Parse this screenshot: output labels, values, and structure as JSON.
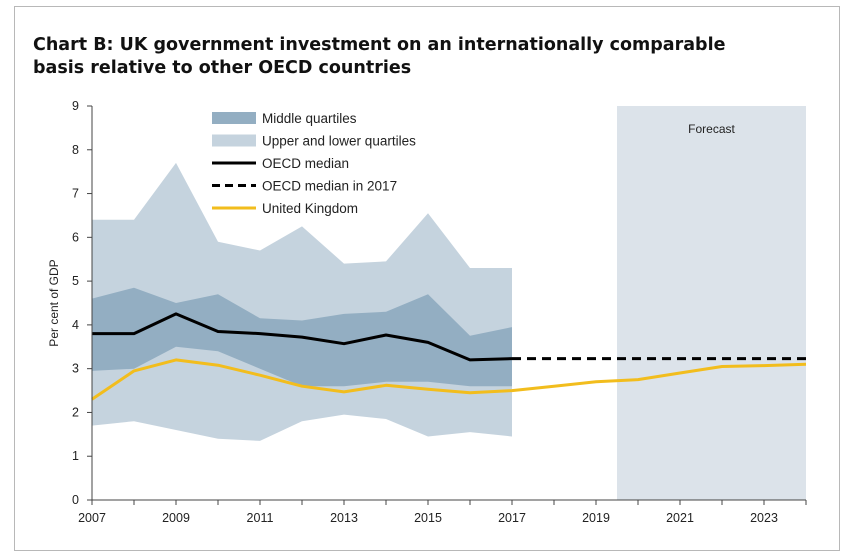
{
  "chart_data": {
    "type": "area",
    "title": "Chart B: UK government investment on an internationally comparable basis relative to other OECD countries",
    "ylabel": "Per cent of GDP",
    "xlabel": "",
    "xlim": [
      2007,
      2024
    ],
    "ylim": [
      0,
      9
    ],
    "yticks": [
      0,
      1,
      2,
      3,
      4,
      5,
      6,
      7,
      8,
      9
    ],
    "xticks": [
      2007,
      2009,
      2011,
      2013,
      2015,
      2017,
      2019,
      2021,
      2023
    ],
    "forecast": {
      "label": "Forecast",
      "start": 2019.5,
      "end": 2024
    },
    "legend_position": "top-left",
    "series": [
      {
        "name": "Upper and lower quartiles",
        "color": "#c5d3de",
        "x": [
          2007,
          2008,
          2009,
          2010,
          2011,
          2012,
          2013,
          2014,
          2015,
          2016,
          2017
        ],
        "upper": [
          6.4,
          6.4,
          7.7,
          5.9,
          5.7,
          6.25,
          5.4,
          5.45,
          6.55,
          5.3,
          5.3
        ],
        "lower": [
          1.7,
          1.8,
          1.6,
          1.4,
          1.35,
          1.8,
          1.95,
          1.85,
          1.45,
          1.55,
          1.45
        ]
      },
      {
        "name": "Middle quartiles",
        "color": "#93aec2",
        "x": [
          2007,
          2008,
          2009,
          2010,
          2011,
          2012,
          2013,
          2014,
          2015,
          2016,
          2017
        ],
        "upper": [
          4.6,
          4.85,
          4.5,
          4.7,
          4.15,
          4.1,
          4.25,
          4.3,
          4.7,
          3.75,
          3.95
        ],
        "lower": [
          2.95,
          3.0,
          3.5,
          3.4,
          3.0,
          2.6,
          2.6,
          2.7,
          2.7,
          2.6,
          2.6
        ]
      },
      {
        "name": "OECD median",
        "color": "#000000",
        "x": [
          2007,
          2008,
          2009,
          2010,
          2011,
          2012,
          2013,
          2014,
          2015,
          2016,
          2017
        ],
        "values": [
          3.8,
          3.8,
          4.25,
          3.85,
          3.8,
          3.72,
          3.57,
          3.77,
          3.6,
          3.2,
          3.23
        ]
      },
      {
        "name": "OECD median in 2017",
        "color": "#000000",
        "x": [
          2017,
          2024
        ],
        "values": [
          3.23,
          3.23
        ]
      },
      {
        "name": "United Kingdom",
        "color": "#f2bd1d",
        "x": [
          2007,
          2008,
          2009,
          2010,
          2011,
          2012,
          2013,
          2014,
          2015,
          2016,
          2017,
          2018,
          2019,
          2020,
          2021,
          2022,
          2023,
          2024
        ],
        "values": [
          2.3,
          2.95,
          3.2,
          3.08,
          2.85,
          2.6,
          2.47,
          2.62,
          2.53,
          2.45,
          2.5,
          2.6,
          2.7,
          2.75,
          2.9,
          3.05,
          3.07,
          3.1
        ]
      }
    ]
  }
}
